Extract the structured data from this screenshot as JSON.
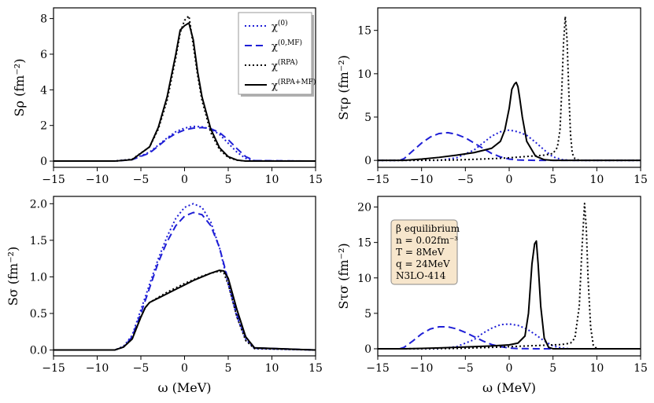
{
  "colors": {
    "blue": "#1f1fd6",
    "black": "#000000",
    "info_fill": "#f7e6cc",
    "info_stroke": "#8a8a8a"
  },
  "xlabel_main": "ω (MeV)",
  "legend": [
    {
      "key": "chi0",
      "base": "χ",
      "sup": "(0)",
      "style": "dotted",
      "color": "blue"
    },
    {
      "key": "chi0mf",
      "base": "χ",
      "sup": "(0,MF)",
      "style": "dashed",
      "color": "blue"
    },
    {
      "key": "chirpa",
      "base": "χ",
      "sup": "(RPA)",
      "style": "dotted",
      "color": "black"
    },
    {
      "key": "chirpamf",
      "base": "χ",
      "sup": "(RPA+MF)",
      "style": "solid",
      "color": "black"
    }
  ],
  "info_box": {
    "lines": [
      "β  equilibrium",
      "n = 0.02fm⁻³",
      "T = 8MeV",
      "q = 24MeV",
      "N3LO-414"
    ]
  },
  "chart_data": [
    {
      "id": "S_rho",
      "type": "line",
      "ylabel": "Sρ (fm⁻²)",
      "xlim": [
        -15,
        15
      ],
      "ylim": [
        -0.35,
        8.6
      ],
      "xticks": [
        -15,
        -10,
        -5,
        0,
        5,
        10,
        15
      ],
      "yticks": [
        0,
        2,
        4,
        6,
        8
      ],
      "series": [
        {
          "name": "chi0",
          "x": [
            -15,
            -8,
            -6,
            -4,
            -3,
            -2,
            -1,
            0,
            1,
            2,
            3,
            4,
            5,
            6,
            7,
            8,
            15
          ],
          "y": [
            0,
            0,
            0.1,
            0.5,
            0.9,
            1.3,
            1.65,
            1.85,
            1.95,
            1.92,
            1.8,
            1.5,
            1.0,
            0.5,
            0.15,
            0.02,
            0
          ]
        },
        {
          "name": "chi0mf",
          "x": [
            -15,
            -8,
            -6,
            -4,
            -3,
            -2,
            -1,
            0,
            1,
            2,
            3,
            4,
            5,
            6,
            7,
            8,
            15
          ],
          "y": [
            0,
            0,
            0.08,
            0.45,
            0.85,
            1.25,
            1.55,
            1.75,
            1.85,
            1.88,
            1.82,
            1.6,
            1.2,
            0.7,
            0.25,
            0.03,
            0
          ]
        },
        {
          "name": "chirpa",
          "x": [
            -15,
            -8,
            -6,
            -4,
            -3,
            -2,
            -1,
            -0.5,
            0,
            0.5,
            1,
            1.5,
            2,
            3,
            4,
            5,
            6,
            7,
            15
          ],
          "y": [
            0,
            0,
            0.1,
            0.8,
            1.8,
            3.4,
            5.8,
            7.2,
            7.9,
            8.15,
            6.5,
            4.8,
            3.4,
            1.6,
            0.65,
            0.2,
            0.05,
            0,
            0
          ]
        },
        {
          "name": "chirpamf",
          "x": [
            -15,
            -8,
            -6,
            -4,
            -3,
            -2,
            -1,
            -0.5,
            0,
            0.5,
            1,
            1.5,
            2,
            3,
            4,
            5,
            6,
            7,
            15
          ],
          "y": [
            0,
            0,
            0.08,
            0.8,
            1.9,
            3.6,
            6.0,
            7.35,
            7.6,
            7.75,
            6.8,
            5.0,
            3.6,
            1.8,
            0.75,
            0.25,
            0.06,
            0,
            0
          ]
        }
      ]
    },
    {
      "id": "S_taurho",
      "type": "line",
      "ylabel": "Sτρ (fm⁻²)",
      "xlim": [
        -15,
        15
      ],
      "ylim": [
        -0.8,
        17.6
      ],
      "xticks": [
        -15,
        -10,
        -5,
        0,
        5,
        10,
        15
      ],
      "yticks": [
        0,
        5,
        10,
        15
      ],
      "series": [
        {
          "name": "chi0",
          "x": [
            -15,
            -8,
            -6,
            -4,
            -3,
            -2,
            -1,
            0,
            1,
            2,
            3,
            4,
            5,
            6,
            7,
            15
          ],
          "y": [
            0,
            0,
            0.3,
            1.2,
            2.0,
            2.8,
            3.3,
            3.5,
            3.3,
            2.9,
            2.1,
            1.2,
            0.4,
            0.1,
            0,
            0
          ]
        },
        {
          "name": "chi0mf",
          "x": [
            -15,
            -12.5,
            -12,
            -11,
            -10,
            -9,
            -8,
            -7,
            -6,
            -5,
            -4,
            -3,
            -2,
            -1,
            0,
            1,
            3,
            15
          ],
          "y": [
            0,
            0,
            0.2,
            1.1,
            2.0,
            2.7,
            3.1,
            3.2,
            3.0,
            2.6,
            2.0,
            1.4,
            0.8,
            0.4,
            0.15,
            0.05,
            0,
            0
          ]
        },
        {
          "name": "chirpa",
          "x": [
            -15,
            -12,
            -6,
            -2,
            0,
            2,
            4,
            5,
            5.5,
            5.8,
            6,
            6.2,
            6.4,
            6.6,
            6.8,
            7,
            7.2,
            7.5,
            8,
            15
          ],
          "y": [
            0,
            0,
            0.05,
            0.2,
            0.3,
            0.45,
            0.6,
            0.8,
            1.5,
            3.5,
            8,
            13.5,
            16.6,
            14,
            8,
            3,
            0.8,
            0.2,
            0,
            0
          ]
        },
        {
          "name": "chirpamf",
          "x": [
            -15,
            -12,
            -10,
            -8,
            -6,
            -4,
            -2,
            -1,
            -0.5,
            0,
            0.3,
            0.6,
            0.8,
            1,
            1.2,
            1.5,
            2,
            3,
            4,
            5,
            15
          ],
          "y": [
            0,
            0,
            0.15,
            0.35,
            0.6,
            0.9,
            1.4,
            2.2,
            3.5,
            6,
            8.2,
            8.8,
            9.0,
            8.5,
            7.2,
            5.0,
            2.2,
            0.5,
            0.08,
            0,
            0
          ]
        }
      ]
    },
    {
      "id": "S_sigma",
      "type": "line",
      "ylabel": "Sσ (fm⁻²)",
      "xlim": [
        -15,
        15
      ],
      "ylim": [
        -0.08,
        2.1
      ],
      "xticks": [
        -15,
        -10,
        -5,
        0,
        5,
        10,
        15
      ],
      "yticks": [
        0.0,
        0.5,
        1.0,
        1.5,
        2.0
      ],
      "series": [
        {
          "name": "chi0",
          "x": [
            -15,
            -8,
            -7,
            -6,
            -5,
            -4,
            -3,
            -2,
            -1,
            0,
            1,
            2,
            3,
            4,
            5,
            6,
            7,
            8,
            15
          ],
          "y": [
            0,
            0,
            0.05,
            0.2,
            0.55,
            0.9,
            1.25,
            1.55,
            1.8,
            1.95,
            2.0,
            1.95,
            1.75,
            1.4,
            0.9,
            0.45,
            0.15,
            0.02,
            0
          ]
        },
        {
          "name": "chi0mf",
          "x": [
            -15,
            -8,
            -7,
            -6,
            -5,
            -4,
            -3,
            -2,
            -1,
            0,
            1,
            2,
            3,
            4,
            5,
            6,
            7,
            8,
            15
          ],
          "y": [
            0,
            0,
            0.04,
            0.18,
            0.5,
            0.85,
            1.2,
            1.48,
            1.7,
            1.83,
            1.88,
            1.85,
            1.7,
            1.4,
            0.95,
            0.5,
            0.18,
            0.03,
            0
          ]
        },
        {
          "name": "chirpa",
          "x": [
            -15,
            -8,
            -7,
            -6,
            -5,
            -4.5,
            -4,
            -3,
            -2,
            -1,
            0,
            1,
            2,
            3,
            4,
            4.5,
            5,
            6,
            7,
            8,
            15
          ],
          "y": [
            0,
            0,
            0.04,
            0.15,
            0.45,
            0.58,
            0.65,
            0.72,
            0.79,
            0.85,
            0.91,
            0.96,
            1.01,
            1.05,
            1.08,
            1.05,
            0.9,
            0.45,
            0.13,
            0.02,
            0
          ]
        },
        {
          "name": "chirpamf",
          "x": [
            -15,
            -8,
            -7,
            -6,
            -5,
            -4.5,
            -4,
            -3,
            -2,
            -1,
            0,
            1,
            2,
            3,
            4,
            4.5,
            5,
            6,
            7,
            8,
            15
          ],
          "y": [
            0,
            0,
            0.04,
            0.15,
            0.45,
            0.58,
            0.65,
            0.71,
            0.77,
            0.83,
            0.89,
            0.95,
            1.0,
            1.05,
            1.09,
            1.08,
            0.98,
            0.55,
            0.18,
            0.03,
            0
          ]
        }
      ]
    },
    {
      "id": "S_tausigma",
      "type": "line",
      "ylabel": "Sτσ (fm⁻²)",
      "xlim": [
        -15,
        15
      ],
      "ylim": [
        -1.0,
        21.5
      ],
      "xticks": [
        -15,
        -10,
        -5,
        0,
        5,
        10,
        15
      ],
      "yticks": [
        0,
        5,
        10,
        15,
        20
      ],
      "series": [
        {
          "name": "chi0",
          "x": [
            -15,
            -8,
            -6,
            -4,
            -3,
            -2,
            -1,
            0,
            1,
            2,
            3,
            4,
            5,
            6,
            7,
            15
          ],
          "y": [
            0,
            0,
            0.3,
            1.3,
            2.2,
            2.9,
            3.4,
            3.5,
            3.3,
            2.8,
            2.0,
            1.1,
            0.4,
            0.1,
            0,
            0
          ]
        },
        {
          "name": "chi0mf",
          "x": [
            -15,
            -12.5,
            -12,
            -11,
            -10,
            -9,
            -8,
            -7,
            -6,
            -5,
            -4,
            -3,
            -2,
            -1,
            0,
            1,
            3,
            15
          ],
          "y": [
            0,
            0,
            0.2,
            1.1,
            2.1,
            2.8,
            3.1,
            3.1,
            2.8,
            2.3,
            1.7,
            1.1,
            0.6,
            0.3,
            0.1,
            0.03,
            0,
            0
          ]
        },
        {
          "name": "chirpa",
          "x": [
            -15,
            -12,
            -6,
            -2,
            0,
            2,
            4,
            6,
            7,
            7.5,
            8,
            8.3,
            8.6,
            8.8,
            9,
            9.3,
            9.6,
            10,
            15
          ],
          "y": [
            0,
            0,
            0.05,
            0.2,
            0.3,
            0.4,
            0.5,
            0.6,
            0.8,
            1.5,
            6,
            14,
            20.5,
            17,
            10,
            3,
            0.5,
            0,
            0
          ]
        },
        {
          "name": "chirpamf",
          "x": [
            -15,
            -12,
            -10,
            -8,
            -6,
            -4,
            -2,
            0,
            1,
            1.8,
            2.2,
            2.6,
            2.9,
            3.1,
            3.3,
            3.6,
            4,
            4.5,
            5,
            15
          ],
          "y": [
            0,
            0,
            0.05,
            0.12,
            0.2,
            0.3,
            0.4,
            0.55,
            0.8,
            1.8,
            5,
            12,
            14.8,
            15.2,
            12,
            6,
            1.5,
            0.2,
            0,
            0
          ]
        }
      ]
    }
  ]
}
